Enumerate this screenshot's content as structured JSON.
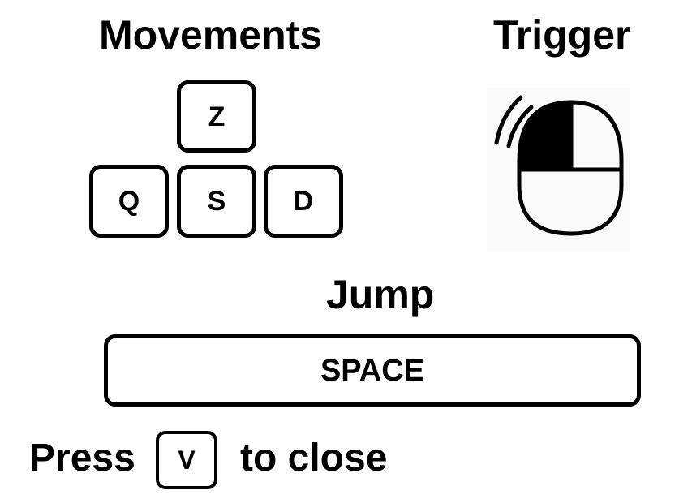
{
  "movements": {
    "title": "Movements",
    "keys": {
      "up": "Z",
      "left": "Q",
      "down": "S",
      "right": "D"
    }
  },
  "trigger": {
    "title": "Trigger",
    "icon": "mouse-left-click-icon"
  },
  "jump": {
    "title": "Jump",
    "key": "SPACE"
  },
  "close_hint": {
    "prefix": "Press",
    "key": "V",
    "suffix": "to close"
  }
}
